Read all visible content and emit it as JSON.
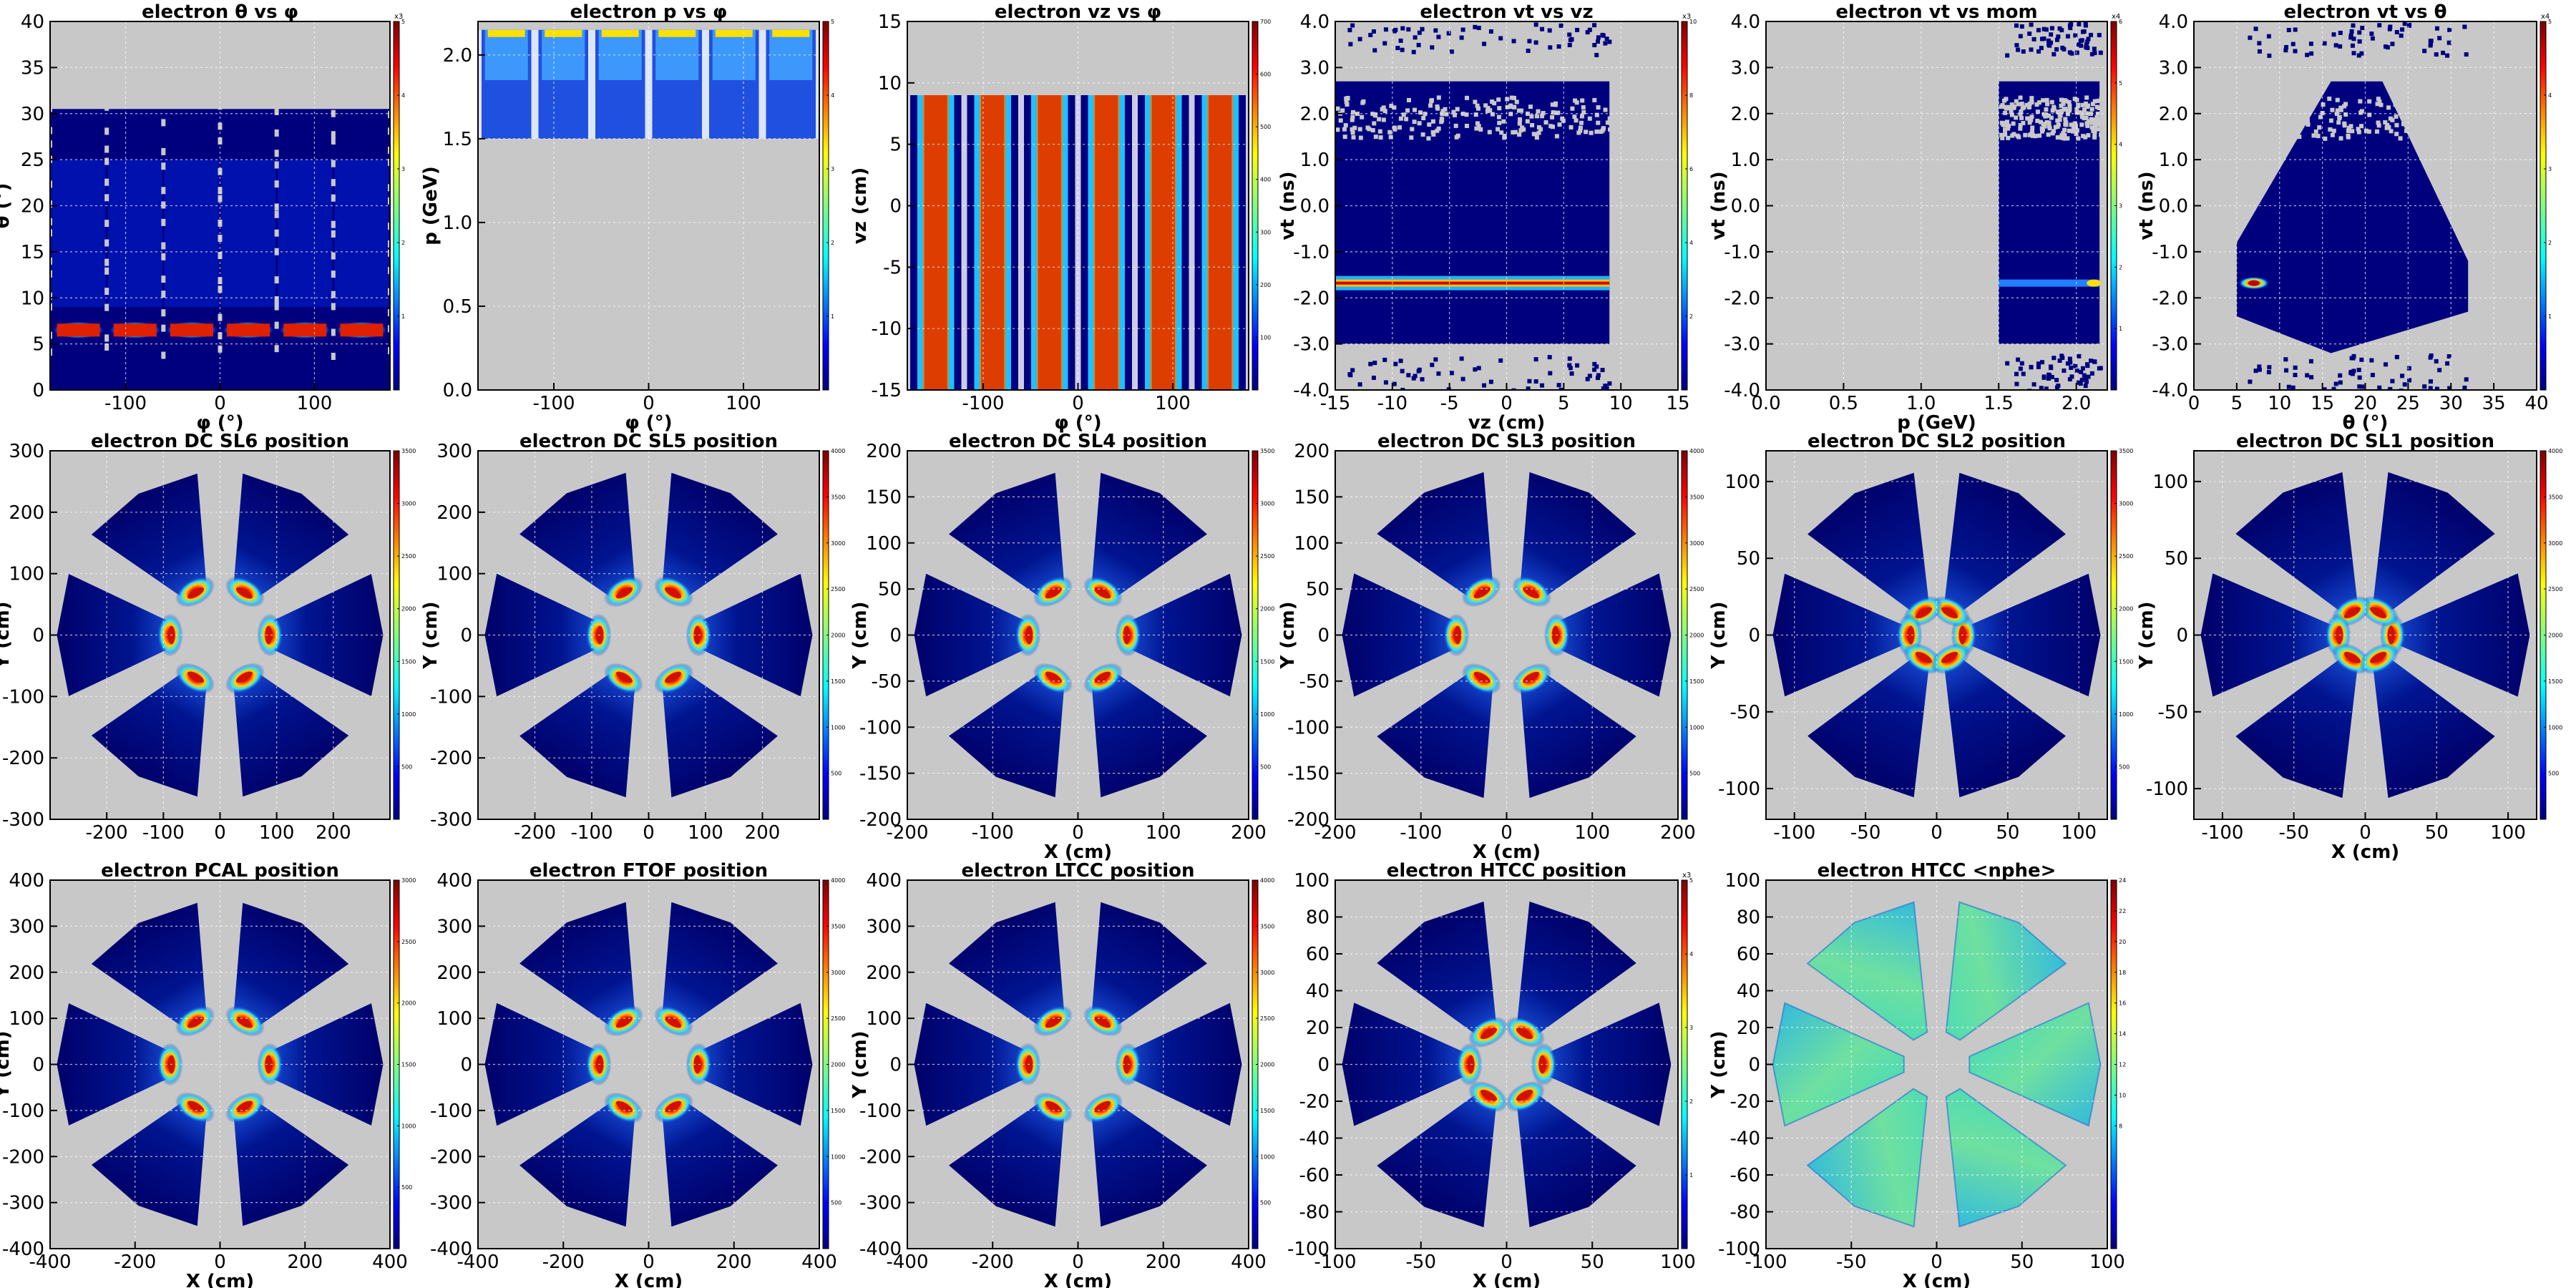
{
  "chart_data": [
    {
      "type": "heatmap",
      "title": "electron θ vs φ",
      "xlabel": "φ (°)",
      "ylabel": "θ (°)",
      "xlim": [
        -180,
        180
      ],
      "ylim": [
        0,
        40
      ],
      "xticks": [
        -100,
        0,
        100
      ],
      "yticks": [
        0,
        5,
        10,
        15,
        20,
        25,
        30,
        35,
        40
      ],
      "colorbar": {
        "max": 5,
        "ticks": [
          1,
          2,
          3,
          4,
          5
        ],
        "exponent": "x3"
      },
      "grid": true
    },
    {
      "type": "heatmap",
      "title": "electron p vs φ",
      "xlabel": "φ (°)",
      "ylabel": "p (GeV)",
      "xlim": [
        -180,
        180
      ],
      "ylim": [
        0,
        2.2
      ],
      "xticks": [
        -100,
        0,
        100
      ],
      "yticks": [
        "0.0",
        "0.5",
        "1.0",
        "1.5",
        "2.0"
      ],
      "colorbar": {
        "max": 5,
        "ticks": [
          1,
          2,
          3,
          4,
          5
        ]
      },
      "grid": true
    },
    {
      "type": "heatmap",
      "title": "electron vz vs φ",
      "xlabel": "φ (°)",
      "ylabel": "vz (cm)",
      "xlim": [
        -180,
        180
      ],
      "ylim": [
        -15,
        15
      ],
      "xticks": [
        -100,
        0,
        100
      ],
      "yticks": [
        -15,
        -10,
        -5,
        0,
        5,
        10,
        15
      ],
      "colorbar": {
        "max": 700,
        "ticks": [
          100,
          200,
          300,
          400,
          500,
          600,
          700
        ]
      },
      "grid": true
    },
    {
      "type": "heatmap",
      "title": "electron vt vs vz",
      "xlabel": "vz (cm)",
      "ylabel": "vt (ns)",
      "xlim": [
        -15,
        15
      ],
      "ylim": [
        -4,
        4
      ],
      "xticks": [
        -15,
        -10,
        -5,
        0,
        5,
        10,
        15
      ],
      "yticks": [
        "-4.0",
        "-3.0",
        "-2.0",
        "-1.0",
        "0.0",
        "1.0",
        "2.0",
        "3.0",
        "4.0"
      ],
      "colorbar": {
        "max": 10,
        "ticks": [
          2,
          4,
          6,
          8,
          10
        ],
        "exponent": "x3"
      },
      "grid": true
    },
    {
      "type": "heatmap",
      "title": "electron vt vs mom",
      "xlabel": "p (GeV)",
      "ylabel": "vt (ns)",
      "xlim": [
        0,
        2.2
      ],
      "ylim": [
        -4,
        4
      ],
      "xticks": [
        "0.0",
        "0.5",
        "1.0",
        "1.5",
        "2.0"
      ],
      "yticks": [
        "-4.0",
        "-3.0",
        "-2.0",
        "-1.0",
        "0.0",
        "1.0",
        "2.0",
        "3.0",
        "4.0"
      ],
      "colorbar": {
        "max": 6,
        "ticks": [
          1,
          2,
          3,
          4,
          5,
          6
        ],
        "exponent": "x4"
      },
      "grid": true
    },
    {
      "type": "heatmap",
      "title": "electron vt vs θ",
      "xlabel": "θ (°)",
      "ylabel": "vt (ns)",
      "xlim": [
        0,
        40
      ],
      "ylim": [
        -4,
        4
      ],
      "xticks": [
        0,
        5,
        10,
        15,
        20,
        25,
        30,
        35,
        40
      ],
      "yticks": [
        "-4.0",
        "-3.0",
        "-2.0",
        "-1.0",
        "0.0",
        "1.0",
        "2.0",
        "3.0",
        "4.0"
      ],
      "colorbar": {
        "max": 5,
        "ticks": [
          1,
          2,
          3,
          4,
          5
        ],
        "exponent": "x4"
      },
      "grid": true
    },
    {
      "type": "heatmap",
      "title": "electron DC SL6 position",
      "xlabel": "",
      "ylabel": "Y (cm)",
      "xlim": [
        -300,
        300
      ],
      "ylim": [
        -300,
        300
      ],
      "xticks": [
        -200,
        -100,
        0,
        100,
        200
      ],
      "yticks": [
        -300,
        -200,
        -100,
        0,
        100,
        200,
        300
      ],
      "colorbar": {
        "max": 3500,
        "ticks": [
          500,
          1000,
          1500,
          2000,
          2500,
          3000,
          3500
        ]
      },
      "grid": true
    },
    {
      "type": "heatmap",
      "title": "electron DC SL5 position",
      "xlabel": "",
      "ylabel": "Y (cm)",
      "xlim": [
        -300,
        300
      ],
      "ylim": [
        -300,
        300
      ],
      "xticks": [
        -200,
        -100,
        0,
        100,
        200
      ],
      "yticks": [
        -300,
        -200,
        -100,
        0,
        100,
        200,
        300
      ],
      "colorbar": {
        "max": 4000,
        "ticks": [
          500,
          1000,
          1500,
          2000,
          2500,
          3000,
          3500,
          4000
        ]
      },
      "grid": true
    },
    {
      "type": "heatmap",
      "title": "electron DC SL4 position",
      "xlabel": "X (cm)",
      "ylabel": "Y (cm)",
      "xlim": [
        -200,
        200
      ],
      "ylim": [
        -200,
        200
      ],
      "xticks": [
        -200,
        -100,
        0,
        100,
        200
      ],
      "yticks": [
        -200,
        -150,
        -100,
        -50,
        0,
        50,
        100,
        150,
        200
      ],
      "colorbar": {
        "max": 3500,
        "ticks": [
          500,
          1000,
          1500,
          2000,
          2500,
          3000,
          3500
        ]
      },
      "grid": true
    },
    {
      "type": "heatmap",
      "title": "electron DC SL3 position",
      "xlabel": "X (cm)",
      "ylabel": "Y (cm)",
      "xlim": [
        -200,
        200
      ],
      "ylim": [
        -200,
        200
      ],
      "xticks": [
        -200,
        -100,
        0,
        100,
        200
      ],
      "yticks": [
        -200,
        -150,
        -100,
        -50,
        0,
        50,
        100,
        150,
        200
      ],
      "colorbar": {
        "max": 4000,
        "ticks": [
          500,
          1000,
          1500,
          2000,
          2500,
          3000,
          3500,
          4000
        ]
      },
      "grid": true
    },
    {
      "type": "heatmap",
      "title": "electron DC SL2 position",
      "xlabel": "",
      "ylabel": "Y (cm)",
      "xlim": [
        -120,
        120
      ],
      "ylim": [
        -120,
        120
      ],
      "xticks": [
        -100,
        -50,
        0,
        50,
        100
      ],
      "yticks": [
        -100,
        -50,
        0,
        50,
        100
      ],
      "colorbar": {
        "max": 3500,
        "ticks": [
          500,
          1000,
          1500,
          2000,
          2500,
          3000,
          3500
        ]
      },
      "grid": true
    },
    {
      "type": "heatmap",
      "title": "electron DC SL1 position",
      "xlabel": "X (cm)",
      "ylabel": "Y (cm)",
      "xlim": [
        -120,
        120
      ],
      "ylim": [
        -120,
        120
      ],
      "xticks": [
        -100,
        -50,
        0,
        50,
        100
      ],
      "yticks": [
        -100,
        -50,
        0,
        50,
        100
      ],
      "colorbar": {
        "max": 4000,
        "ticks": [
          500,
          1000,
          1500,
          2000,
          2500,
          3000,
          3500,
          4000
        ]
      },
      "grid": true
    },
    {
      "type": "heatmap",
      "title": "electron PCAL position",
      "xlabel": "X (cm)",
      "ylabel": "Y (cm)",
      "xlim": [
        -400,
        400
      ],
      "ylim": [
        -400,
        400
      ],
      "xticks": [
        -400,
        -200,
        0,
        200,
        400
      ],
      "yticks": [
        -400,
        -300,
        -200,
        -100,
        0,
        100,
        200,
        300,
        400
      ],
      "colorbar": {
        "max": 3000,
        "ticks": [
          500,
          1000,
          1500,
          2000,
          2500,
          3000
        ]
      },
      "grid": true
    },
    {
      "type": "heatmap",
      "title": "electron FTOF position",
      "xlabel": "X (cm)",
      "ylabel": "",
      "xlim": [
        -400,
        400
      ],
      "ylim": [
        -400,
        400
      ],
      "xticks": [
        -400,
        -200,
        0,
        200,
        400
      ],
      "yticks": [
        -400,
        -300,
        -200,
        -100,
        0,
        100,
        200,
        300,
        400
      ],
      "colorbar": {
        "max": 4000,
        "ticks": [
          500,
          1000,
          1500,
          2000,
          2500,
          3000,
          3500,
          4000
        ]
      },
      "grid": true
    },
    {
      "type": "heatmap",
      "title": "electron LTCC position",
      "xlabel": "X (cm)",
      "ylabel": "Y (cm)",
      "xlim": [
        -400,
        400
      ],
      "ylim": [
        -400,
        400
      ],
      "xticks": [
        -400,
        -200,
        0,
        200,
        400
      ],
      "yticks": [
        -400,
        -300,
        -200,
        -100,
        0,
        100,
        200,
        300,
        400
      ],
      "colorbar": {
        "max": 4000,
        "ticks": [
          500,
          1000,
          1500,
          2000,
          2500,
          3000,
          3500,
          4000
        ]
      },
      "grid": true
    },
    {
      "type": "heatmap",
      "title": "electron HTCC position",
      "xlabel": "X (cm)",
      "ylabel": "",
      "xlim": [
        -100,
        100
      ],
      "ylim": [
        -100,
        100
      ],
      "xticks": [
        -100,
        -50,
        0,
        50,
        100
      ],
      "yticks": [
        -100,
        -80,
        -60,
        -40,
        -20,
        0,
        20,
        40,
        60,
        80,
        100
      ],
      "colorbar": {
        "max": 5,
        "ticks": [
          1,
          2,
          3,
          4,
          5
        ],
        "exponent": "x3"
      },
      "grid": true
    },
    {
      "type": "heatmap",
      "title": "electron HTCC <nphe>",
      "xlabel": "X (cm)",
      "ylabel": "Y (cm)",
      "xlim": [
        -100,
        100
      ],
      "ylim": [
        -100,
        100
      ],
      "xticks": [
        -100,
        -50,
        0,
        50,
        100
      ],
      "yticks": [
        -100,
        -80,
        -60,
        -40,
        -20,
        0,
        20,
        40,
        60,
        80,
        100
      ],
      "colorbar": {
        "max": 24,
        "ticks": [
          8,
          10,
          12,
          14,
          16,
          18,
          20,
          22,
          24
        ]
      },
      "grid": true
    }
  ],
  "colors": {
    "background": "#c8c8c8",
    "low": "#00007f",
    "high": "#7f0000",
    "grid": "#ffffff"
  }
}
